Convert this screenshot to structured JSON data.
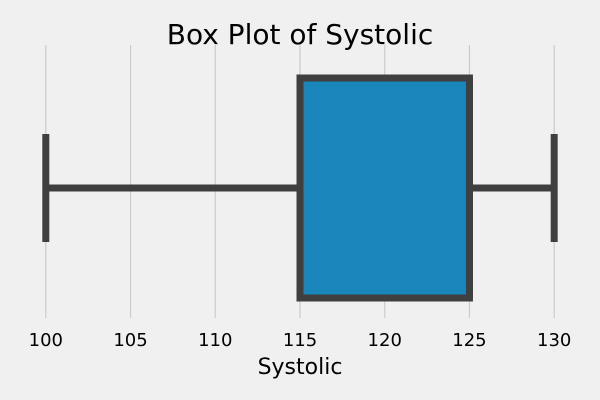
{
  "chart_data": {
    "type": "box",
    "title": "Box Plot of Systolic",
    "xlabel": "Systolic",
    "ylabel": "",
    "xlim": [
      98.3,
      131.7
    ],
    "x_ticks": [
      100,
      105,
      110,
      115,
      120,
      125,
      130
    ],
    "x_tick_labels": [
      "100",
      "105",
      "110",
      "115",
      "120",
      "125",
      "130"
    ],
    "grid": "vertical",
    "orientation": "horizontal",
    "series": [
      {
        "whisker_low": 100,
        "q1": 115,
        "q3": 125,
        "whisker_high": 130,
        "median": 125
      }
    ],
    "colors": {
      "background": "#f0f0f0",
      "box_fill": "#1b86bb",
      "box_edge": "#3f3f3f",
      "grid": "#cbcbcb",
      "text": "#000000"
    }
  }
}
